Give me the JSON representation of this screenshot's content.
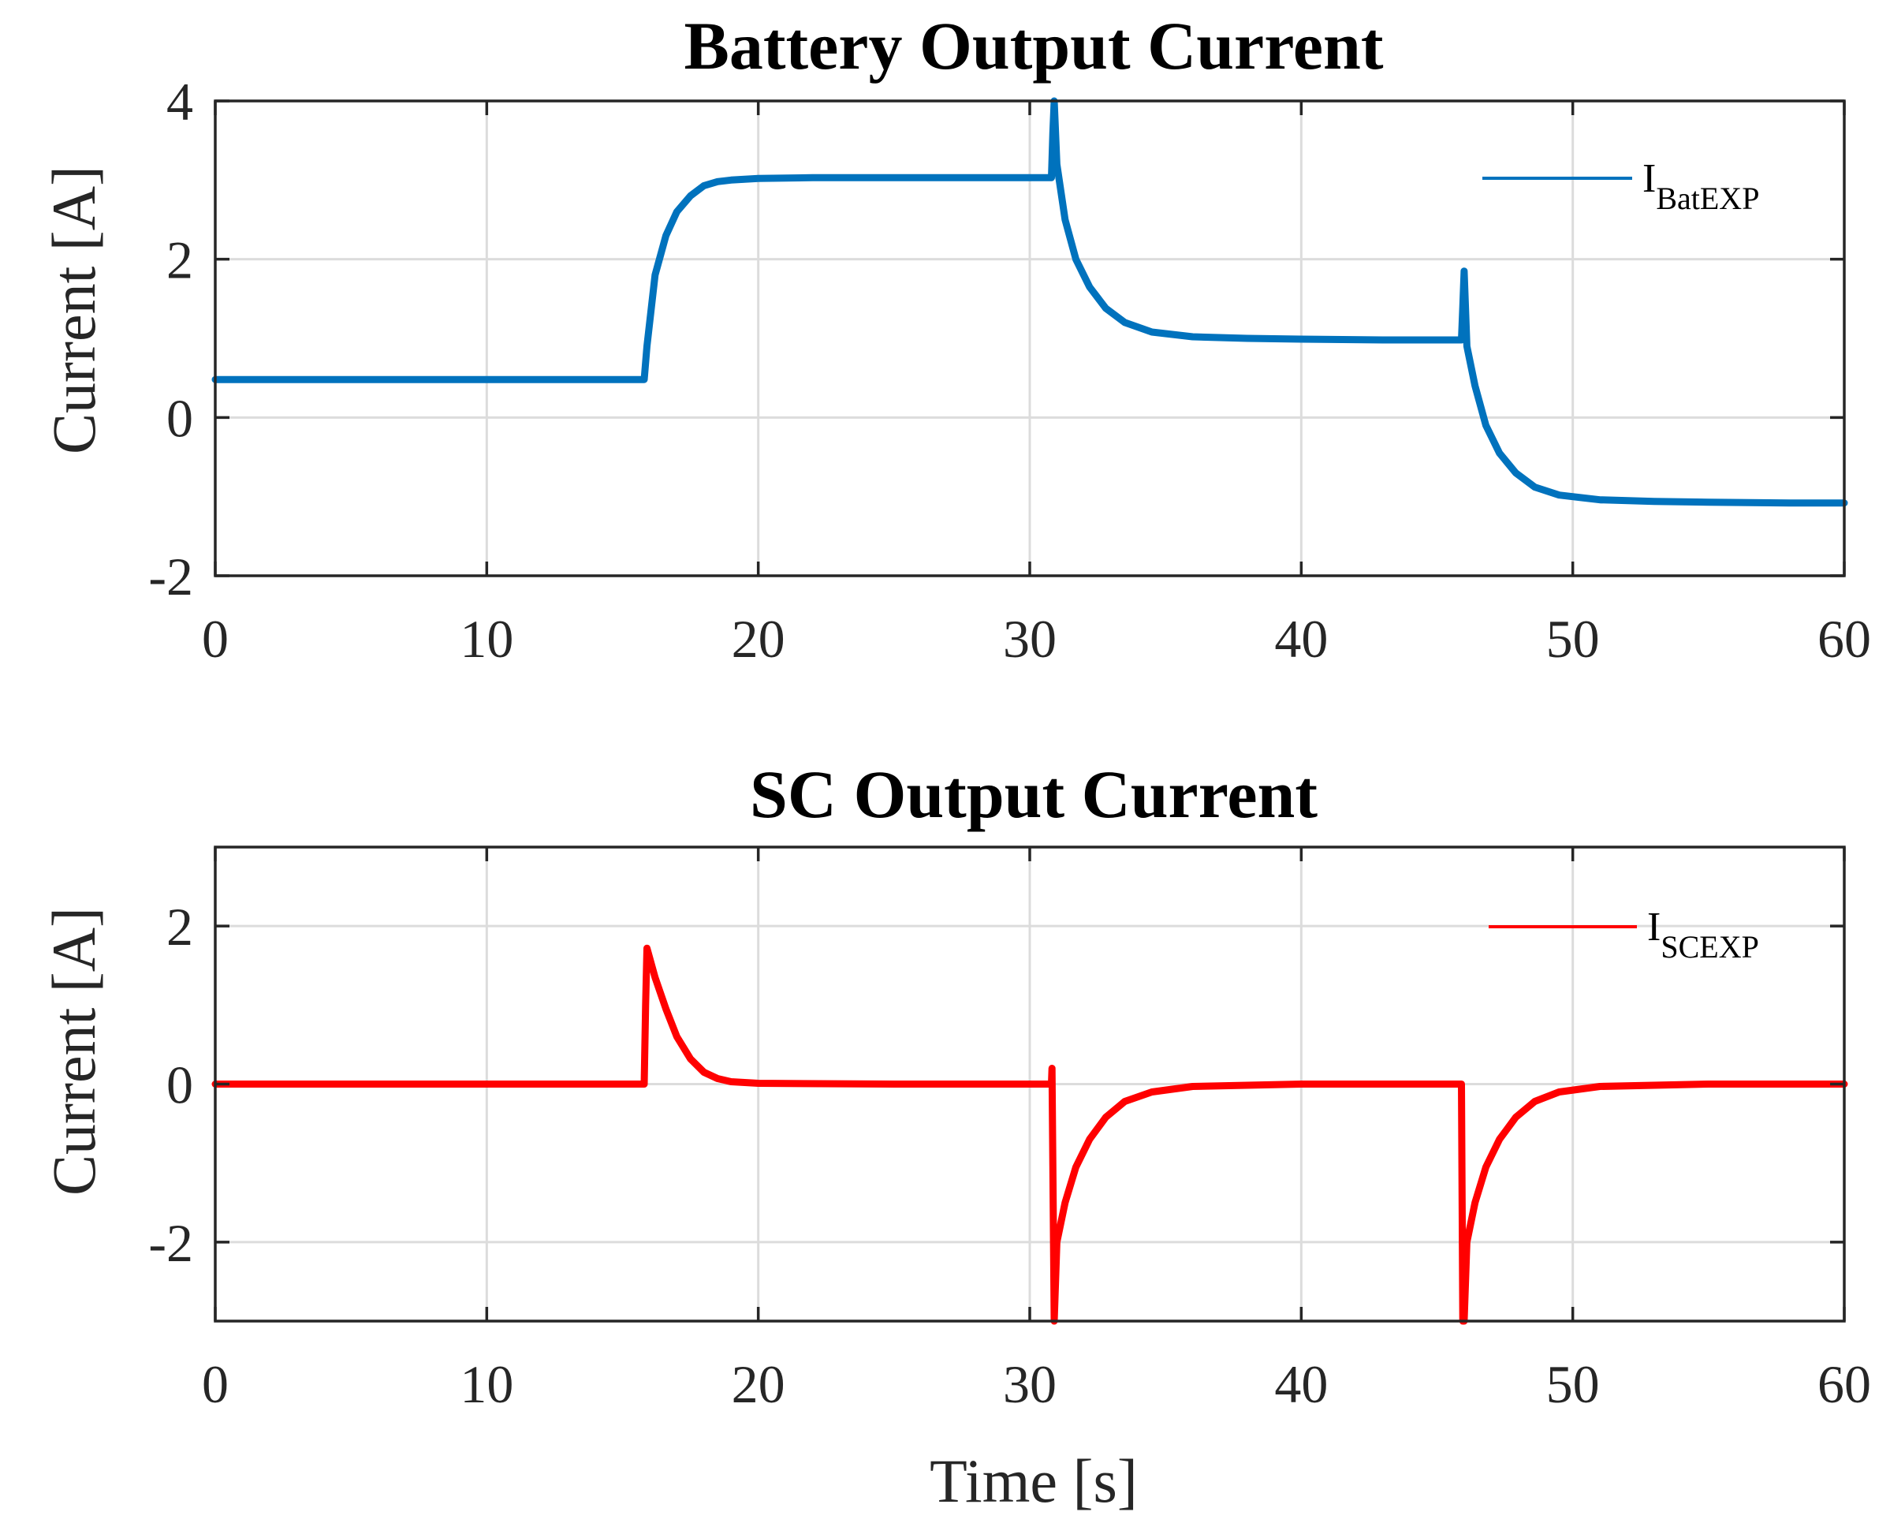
{
  "chart_data": [
    {
      "type": "line",
      "title": "Battery Output Current",
      "xlabel": "",
      "ylabel": "Current [A]",
      "xlim": [
        0,
        60
      ],
      "ylim": [
        -2,
        4
      ],
      "xticks": [
        "0",
        "10",
        "20",
        "30",
        "40",
        "50",
        "60"
      ],
      "yticks": [
        "4",
        "2",
        "0",
        "-2"
      ],
      "grid": true,
      "legend_position": "top-right",
      "series": [
        {
          "name": "I_BatEXP",
          "legend_main": "I",
          "legend_sub": "BatEXP",
          "color": "#0072BD",
          "x": [
            0,
            5,
            10,
            15,
            15.8,
            15.9,
            16.2,
            16.6,
            17.0,
            17.5,
            18.0,
            18.5,
            19.0,
            20,
            22,
            25,
            28,
            30.8,
            30.85,
            30.9,
            31.0,
            31.3,
            31.7,
            32.2,
            32.8,
            33.5,
            34.5,
            36,
            38,
            40,
            43,
            45.9,
            45.95,
            46.0,
            46.1,
            46.4,
            46.8,
            47.3,
            47.9,
            48.6,
            49.5,
            51,
            53,
            55,
            58,
            60
          ],
          "y": [
            0.48,
            0.48,
            0.48,
            0.48,
            0.48,
            0.9,
            1.8,
            2.3,
            2.6,
            2.8,
            2.93,
            2.98,
            3.0,
            3.02,
            3.03,
            3.03,
            3.03,
            3.03,
            3.6,
            4.0,
            3.2,
            2.5,
            2.0,
            1.65,
            1.38,
            1.2,
            1.08,
            1.02,
            1.0,
            0.99,
            0.98,
            0.98,
            1.4,
            1.85,
            0.9,
            0.4,
            -0.1,
            -0.45,
            -0.7,
            -0.88,
            -0.98,
            -1.04,
            -1.06,
            -1.07,
            -1.08,
            -1.08
          ]
        }
      ]
    },
    {
      "type": "line",
      "title": "SC Output Current",
      "xlabel": "Time [s]",
      "ylabel": "Current [A]",
      "xlim": [
        0,
        60
      ],
      "ylim": [
        -3,
        3
      ],
      "xticks": [
        "0",
        "10",
        "20",
        "30",
        "40",
        "50",
        "60"
      ],
      "yticks": [
        "2",
        "0",
        "-2"
      ],
      "grid": true,
      "legend_position": "top-right",
      "series": [
        {
          "name": "I_SCEXP",
          "legend_main": "I",
          "legend_sub": "SCEXP",
          "color": "#FF0000",
          "x": [
            0,
            5,
            10,
            15,
            15.8,
            15.85,
            15.9,
            16.2,
            16.6,
            17.0,
            17.5,
            18.0,
            18.5,
            19.0,
            20,
            25,
            30.8,
            30.82,
            30.9,
            31.0,
            31.3,
            31.7,
            32.2,
            32.8,
            33.5,
            34.5,
            36,
            40,
            45.9,
            45.95,
            46.0,
            46.1,
            46.4,
            46.8,
            47.3,
            47.9,
            48.6,
            49.5,
            51,
            55,
            60
          ],
          "y": [
            0,
            0,
            0,
            0,
            0,
            1.0,
            1.72,
            1.35,
            0.95,
            0.6,
            0.32,
            0.15,
            0.07,
            0.03,
            0.01,
            0,
            0,
            0.2,
            -3.0,
            -2.0,
            -1.5,
            -1.05,
            -0.7,
            -0.42,
            -0.22,
            -0.1,
            -0.03,
            0,
            0,
            -3.0,
            -3.0,
            -2.0,
            -1.5,
            -1.05,
            -0.7,
            -0.42,
            -0.22,
            -0.1,
            -0.03,
            0,
            0
          ]
        }
      ]
    }
  ]
}
